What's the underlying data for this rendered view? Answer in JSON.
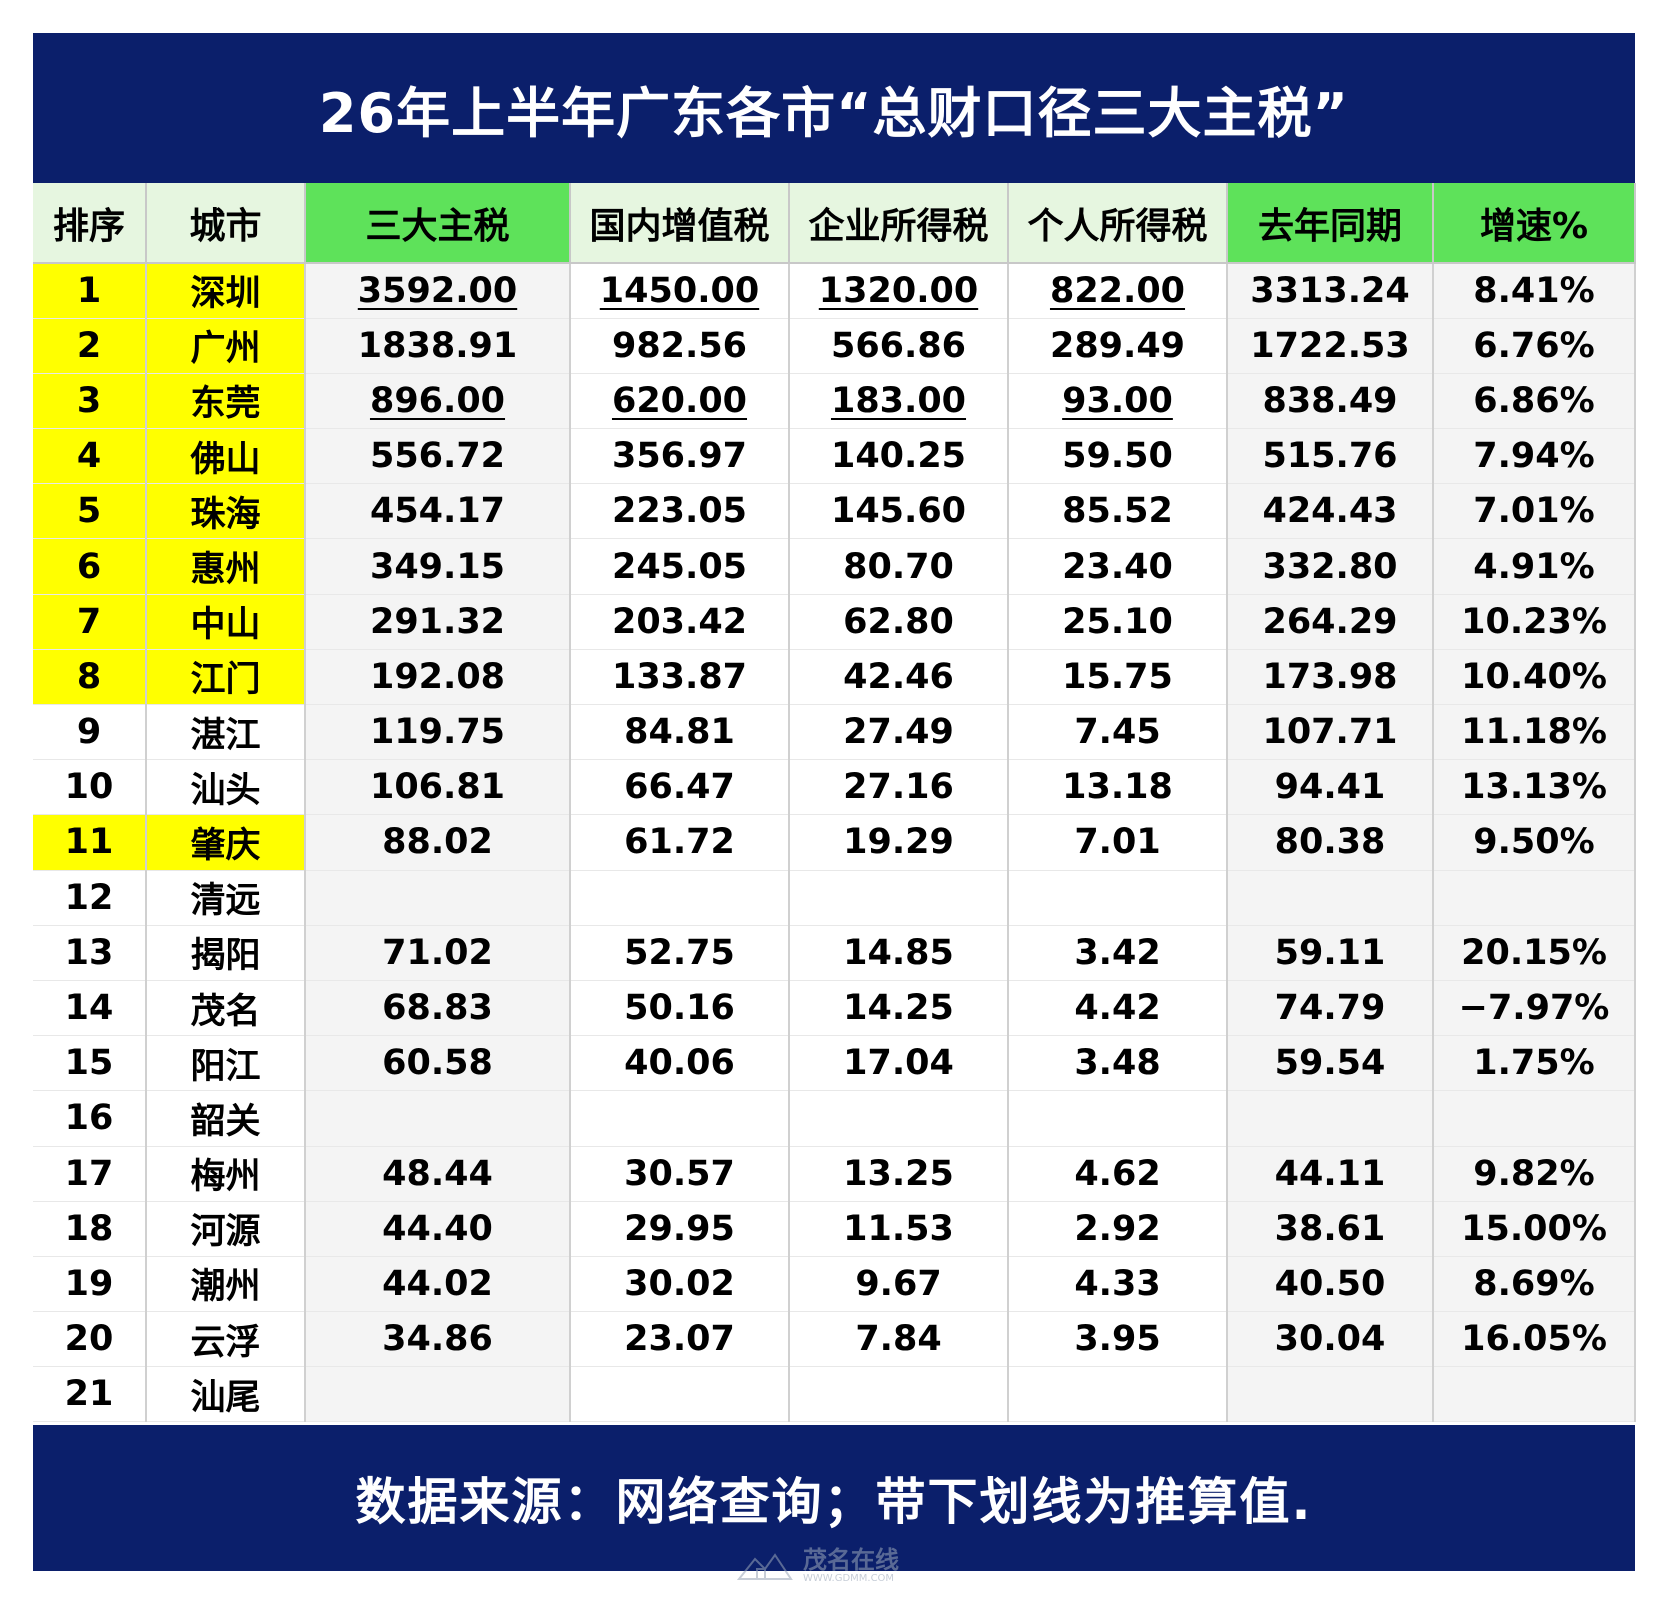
{
  "title": "26年上半年广东各市“总财口径三大主税”",
  "footer": "数据来源：网络查询；带下划线为推算值.",
  "watermark": {
    "name": "茂名在线",
    "url": "WWW.GDMM.COM"
  },
  "colors": {
    "banner": "#0b1f6b",
    "header_green": "#5ee25a",
    "header_light": "#e6f6e0",
    "rank_highlight": "#ffff00",
    "growth_positive": "#1f8f2a",
    "growth_negative": "#e01010"
  },
  "chart_data": {
    "type": "table",
    "columns": [
      "排序",
      "城市",
      "三大主税",
      "国内增值税",
      "企业所得税",
      "个人所得税",
      "去年同期",
      "增速%"
    ],
    "rows": [
      {
        "rank": "1",
        "city": "深圳",
        "total": "3592.00",
        "vat": "1450.00",
        "cit": "1320.00",
        "pit": "822.00",
        "last_year": "3313.24",
        "growth": "8.41%",
        "highlight": true,
        "estimated": true,
        "growth_color": "default"
      },
      {
        "rank": "2",
        "city": "广州",
        "total": "1838.91",
        "vat": "982.56",
        "cit": "566.86",
        "pit": "289.49",
        "last_year": "1722.53",
        "growth": "6.76%",
        "highlight": true,
        "estimated": false,
        "growth_color": "default"
      },
      {
        "rank": "3",
        "city": "东莞",
        "total": "896.00",
        "vat": "620.00",
        "cit": "183.00",
        "pit": "93.00",
        "last_year": "838.49",
        "growth": "6.86%",
        "highlight": true,
        "estimated": true,
        "growth_color": "default"
      },
      {
        "rank": "4",
        "city": "佛山",
        "total": "556.72",
        "vat": "356.97",
        "cit": "140.25",
        "pit": "59.50",
        "last_year": "515.76",
        "growth": "7.94%",
        "highlight": true,
        "estimated": false,
        "growth_color": "default"
      },
      {
        "rank": "5",
        "city": "珠海",
        "total": "454.17",
        "vat": "223.05",
        "cit": "145.60",
        "pit": "85.52",
        "last_year": "424.43",
        "growth": "7.01%",
        "highlight": true,
        "estimated": false,
        "growth_color": "default"
      },
      {
        "rank": "6",
        "city": "惠州",
        "total": "349.15",
        "vat": "245.05",
        "cit": "80.70",
        "pit": "23.40",
        "last_year": "332.80",
        "growth": "4.91%",
        "highlight": true,
        "estimated": false,
        "growth_color": "default"
      },
      {
        "rank": "7",
        "city": "中山",
        "total": "291.32",
        "vat": "203.42",
        "cit": "62.80",
        "pit": "25.10",
        "last_year": "264.29",
        "growth": "10.23%",
        "highlight": true,
        "estimated": false,
        "growth_color": "positive"
      },
      {
        "rank": "8",
        "city": "江门",
        "total": "192.08",
        "vat": "133.87",
        "cit": "42.46",
        "pit": "15.75",
        "last_year": "173.98",
        "growth": "10.40%",
        "highlight": true,
        "estimated": false,
        "growth_color": "positive"
      },
      {
        "rank": "9",
        "city": "湛江",
        "total": "119.75",
        "vat": "84.81",
        "cit": "27.49",
        "pit": "7.45",
        "last_year": "107.71",
        "growth": "11.18%",
        "highlight": false,
        "estimated": false,
        "growth_color": "positive"
      },
      {
        "rank": "10",
        "city": "汕头",
        "total": "106.81",
        "vat": "66.47",
        "cit": "27.16",
        "pit": "13.18",
        "last_year": "94.41",
        "growth": "13.13%",
        "highlight": false,
        "estimated": false,
        "growth_color": "positive"
      },
      {
        "rank": "11",
        "city": "肇庆",
        "total": "88.02",
        "vat": "61.72",
        "cit": "19.29",
        "pit": "7.01",
        "last_year": "80.38",
        "growth": "9.50%",
        "highlight": true,
        "estimated": false,
        "growth_color": "default"
      },
      {
        "rank": "12",
        "city": "清远",
        "total": "",
        "vat": "",
        "cit": "",
        "pit": "",
        "last_year": "",
        "growth": "",
        "highlight": false,
        "estimated": false,
        "growth_color": "default"
      },
      {
        "rank": "13",
        "city": "揭阳",
        "total": "71.02",
        "vat": "52.75",
        "cit": "14.85",
        "pit": "3.42",
        "last_year": "59.11",
        "growth": "20.15%",
        "highlight": false,
        "estimated": false,
        "growth_color": "positive"
      },
      {
        "rank": "14",
        "city": "茂名",
        "total": "68.83",
        "vat": "50.16",
        "cit": "14.25",
        "pit": "4.42",
        "last_year": "74.79",
        "growth": "−7.97%",
        "highlight": false,
        "estimated": false,
        "growth_color": "negative"
      },
      {
        "rank": "15",
        "city": "阳江",
        "total": "60.58",
        "vat": "40.06",
        "cit": "17.04",
        "pit": "3.48",
        "last_year": "59.54",
        "growth": "1.75%",
        "highlight": false,
        "estimated": false,
        "growth_color": "default"
      },
      {
        "rank": "16",
        "city": "韶关",
        "total": "",
        "vat": "",
        "cit": "",
        "pit": "",
        "last_year": "",
        "growth": "",
        "highlight": false,
        "estimated": false,
        "growth_color": "default"
      },
      {
        "rank": "17",
        "city": "梅州",
        "total": "48.44",
        "vat": "30.57",
        "cit": "13.25",
        "pit": "4.62",
        "last_year": "44.11",
        "growth": "9.82%",
        "highlight": false,
        "estimated": false,
        "growth_color": "default"
      },
      {
        "rank": "18",
        "city": "河源",
        "total": "44.40",
        "vat": "29.95",
        "cit": "11.53",
        "pit": "2.92",
        "last_year": "38.61",
        "growth": "15.00%",
        "highlight": false,
        "estimated": false,
        "growth_color": "positive"
      },
      {
        "rank": "19",
        "city": "潮州",
        "total": "44.02",
        "vat": "30.02",
        "cit": "9.67",
        "pit": "4.33",
        "last_year": "40.50",
        "growth": "8.69%",
        "highlight": false,
        "estimated": false,
        "growth_color": "default"
      },
      {
        "rank": "20",
        "city": "云浮",
        "total": "34.86",
        "vat": "23.07",
        "cit": "7.84",
        "pit": "3.95",
        "last_year": "30.04",
        "growth": "16.05%",
        "highlight": false,
        "estimated": false,
        "growth_color": "positive"
      },
      {
        "rank": "21",
        "city": "汕尾",
        "total": "",
        "vat": "",
        "cit": "",
        "pit": "",
        "last_year": "",
        "growth": "",
        "highlight": false,
        "estimated": false,
        "growth_color": "default"
      }
    ]
  }
}
